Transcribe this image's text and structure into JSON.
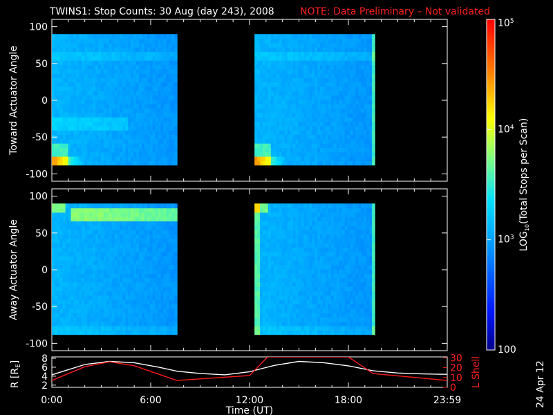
{
  "header": {
    "title": "TWINS1: Stop Counts: 30 Aug (day 243), 2008",
    "note": "NOTE: Data Preliminary – Not validated"
  },
  "footer": {
    "stamp": "24 Apr 12"
  },
  "colors": {
    "note": "#ff2020",
    "axis": "#ffffff",
    "bg": "#000000",
    "lshell": "#ff1a1a",
    "radius": "#ffffff"
  },
  "chart_data": [
    {
      "type": "heatmap",
      "panel": "toward",
      "ylabel": "Toward Actuator Angle",
      "ylim": [
        -110,
        110
      ],
      "yticks": [
        -100,
        -50,
        0,
        50,
        100
      ],
      "xlim": [
        0,
        24
      ],
      "data_blocks_hours": [
        [
          0.0,
          7.6
        ],
        [
          12.3,
          19.6
        ]
      ],
      "angle_range": [
        -88,
        90
      ],
      "features": "elevated counts near -88 deg at start of each data block; orange/yellow patch at 0:00-1:00 below -70 deg"
    },
    {
      "type": "heatmap",
      "panel": "away",
      "ylabel": "Away Actuator Angle",
      "ylim": [
        -110,
        110
      ],
      "yticks": [
        -100,
        -50,
        0,
        50,
        100
      ],
      "xlim": [
        0,
        24
      ],
      "data_blocks_hours": [
        [
          0.0,
          7.6
        ],
        [
          12.3,
          19.6
        ]
      ],
      "angle_range": [
        -88,
        90
      ],
      "features": "orange band near +75 deg from 1:00 to 7:30"
    },
    {
      "type": "line",
      "panel": "orbit",
      "xlabel": "Time (UT)",
      "xticks": [
        "0:00",
        "6:00",
        "12:00",
        "18:00",
        "23:59"
      ],
      "xlim": [
        0,
        24
      ],
      "y_left": {
        "label": "R [RE]",
        "label_main": "R [R",
        "label_sub": "E",
        "label_end": "]",
        "ticks": [
          2,
          4,
          6,
          8
        ],
        "range": [
          1.5,
          8.3
        ]
      },
      "y_right": {
        "label": "L Shell",
        "ticks": [
          0,
          10,
          20,
          30
        ],
        "range": [
          0,
          31
        ]
      },
      "series": [
        {
          "axis": "left",
          "x": [
            0,
            2,
            3.5,
            5,
            6.5,
            7.6,
            9,
            10.5,
            12,
            13.5,
            15,
            16.5,
            18,
            19.5,
            21,
            22.5,
            24
          ],
          "y": [
            4.3,
            6.6,
            7.3,
            7.0,
            6.0,
            5.1,
            4.6,
            4.3,
            5.0,
            6.4,
            7.3,
            7.0,
            6.3,
            5.2,
            4.7,
            4.5,
            4.4
          ]
        },
        {
          "axis": "right",
          "x": [
            0,
            2,
            3.5,
            5,
            7.6,
            12,
            13.1,
            18,
            19.5,
            24
          ],
          "y": [
            7,
            21,
            26,
            22,
            7,
            12,
            31,
            31,
            14,
            7
          ]
        }
      ]
    },
    {
      "type": "heatmap",
      "panel": "colorbar",
      "label": "LOG10(Total Stops per Scan)",
      "label_pre": "LOG",
      "label_sub": "10",
      "label_post": "(Total Stops per Scan)",
      "range": [
        100,
        100000
      ],
      "scale": "log",
      "tick_labels": [
        {
          "base": "10",
          "exp": "5",
          "value": 100000
        },
        {
          "base": "10",
          "exp": "4",
          "value": 10000
        },
        {
          "base": "10",
          "exp": "3",
          "value": 1000
        },
        {
          "text": "100",
          "value": 100
        }
      ]
    }
  ]
}
